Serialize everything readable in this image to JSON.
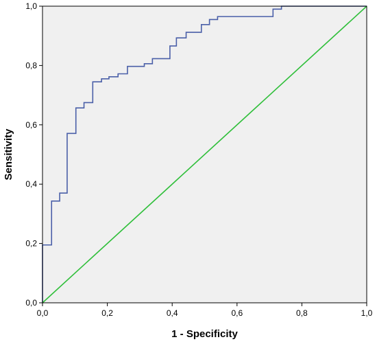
{
  "chart_data": {
    "type": "line",
    "title": "",
    "xlabel": "1 - Specificity",
    "ylabel": "Sensitivity",
    "xlim": [
      0.0,
      1.0
    ],
    "ylim": [
      0.0,
      1.0
    ],
    "x_ticks": [
      "0,0",
      "0,2",
      "0,4",
      "0,6",
      "0,8",
      "1,0"
    ],
    "y_ticks": [
      "0,0",
      "0,2",
      "0,4",
      "0,6",
      "0,8",
      "1,0"
    ],
    "grid": false,
    "plot_background": "#f0f0f0",
    "series": [
      {
        "color": "#4a5fa8",
        "step": true,
        "points": [
          [
            0.0,
            0.0
          ],
          [
            0.0,
            0.195
          ],
          [
            0.028,
            0.195
          ],
          [
            0.028,
            0.343
          ],
          [
            0.053,
            0.343
          ],
          [
            0.053,
            0.37
          ],
          [
            0.076,
            0.37
          ],
          [
            0.076,
            0.571
          ],
          [
            0.103,
            0.571
          ],
          [
            0.103,
            0.657
          ],
          [
            0.128,
            0.657
          ],
          [
            0.128,
            0.675
          ],
          [
            0.155,
            0.675
          ],
          [
            0.155,
            0.745
          ],
          [
            0.182,
            0.745
          ],
          [
            0.182,
            0.755
          ],
          [
            0.205,
            0.755
          ],
          [
            0.205,
            0.762
          ],
          [
            0.233,
            0.762
          ],
          [
            0.233,
            0.772
          ],
          [
            0.262,
            0.772
          ],
          [
            0.262,
            0.797
          ],
          [
            0.314,
            0.797
          ],
          [
            0.314,
            0.806
          ],
          [
            0.339,
            0.806
          ],
          [
            0.339,
            0.823
          ],
          [
            0.393,
            0.823
          ],
          [
            0.393,
            0.866
          ],
          [
            0.413,
            0.866
          ],
          [
            0.413,
            0.893
          ],
          [
            0.443,
            0.893
          ],
          [
            0.443,
            0.912
          ],
          [
            0.49,
            0.912
          ],
          [
            0.49,
            0.938
          ],
          [
            0.515,
            0.938
          ],
          [
            0.515,
            0.955
          ],
          [
            0.54,
            0.955
          ],
          [
            0.54,
            0.965
          ],
          [
            0.711,
            0.965
          ],
          [
            0.711,
            0.99
          ],
          [
            0.737,
            0.99
          ],
          [
            0.737,
            1.0
          ],
          [
            1.0,
            1.0
          ]
        ]
      },
      {
        "color": "#2fbf3a",
        "step": false,
        "points": [
          [
            0.0,
            0.0
          ],
          [
            1.0,
            1.0
          ]
        ]
      }
    ]
  }
}
